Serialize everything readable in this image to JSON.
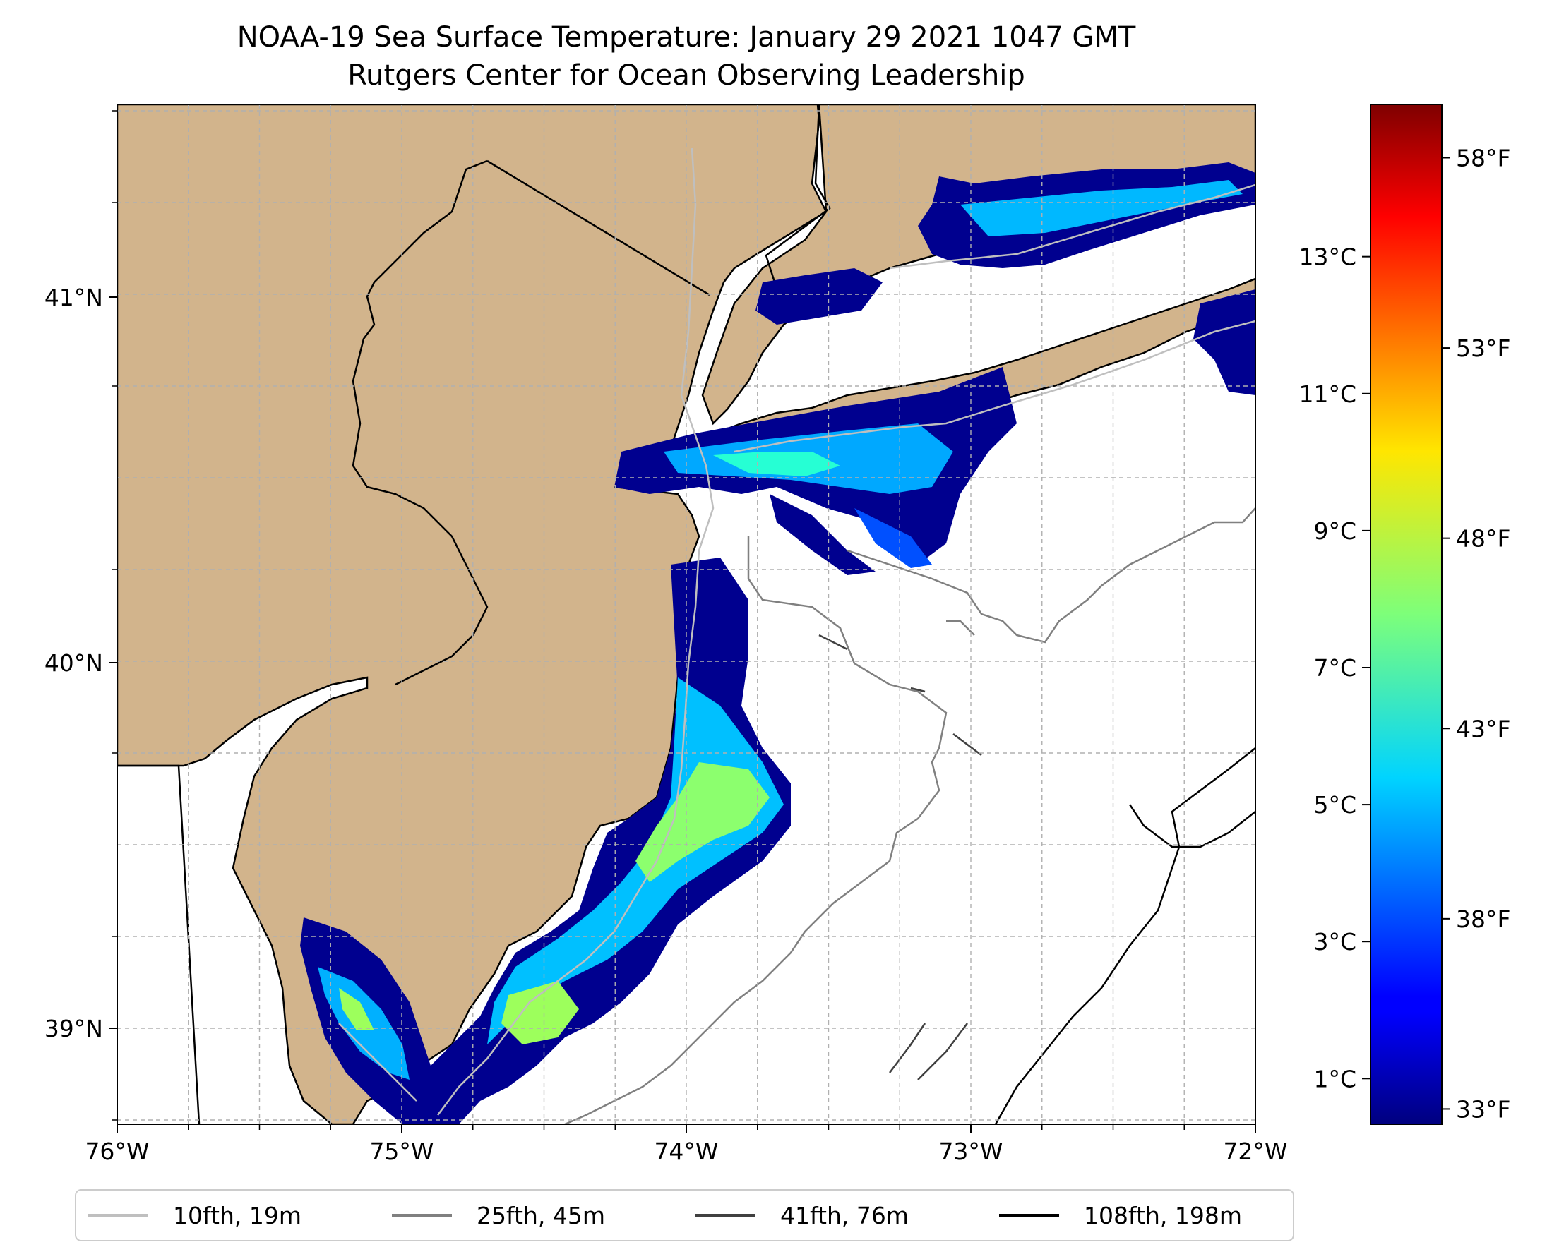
{
  "title": {
    "line1": "NOAA-19 Sea Surface Temperature: January 29 2021 1047 GMT",
    "line2": "Rutgers Center for Ocean Observing Leadership"
  },
  "map": {
    "extent": {
      "lon_min": -76,
      "lon_max": -72,
      "lat_min": 38.75,
      "lat_max": 41.52
    },
    "colors": {
      "land": "#d2b48c",
      "coast": "#000000",
      "grid": "#b0b0b0",
      "ocean": "#ffffff"
    },
    "lon_ticks": [
      {
        "value": -76,
        "label": "76°W"
      },
      {
        "value": -75,
        "label": "75°W"
      },
      {
        "value": -74,
        "label": "74°W"
      },
      {
        "value": -73,
        "label": "73°W"
      },
      {
        "value": -72,
        "label": "72°W"
      }
    ],
    "lat_ticks": [
      {
        "value": 41,
        "label": "41°N"
      },
      {
        "value": 40,
        "label": "40°N"
      },
      {
        "value": 39,
        "label": "39°N"
      }
    ]
  },
  "colorbar": {
    "cmap": "jet",
    "celsius_ticks": [
      {
        "value": 1,
        "label": "1°C"
      },
      {
        "value": 3,
        "label": "3°C"
      },
      {
        "value": 5,
        "label": "5°C"
      },
      {
        "value": 7,
        "label": "7°C"
      },
      {
        "value": 9,
        "label": "9°C"
      },
      {
        "value": 11,
        "label": "11°C"
      },
      {
        "value": 13,
        "label": "13°C"
      }
    ],
    "fahrenheit_ticks": [
      {
        "value": 33,
        "label": "33°F"
      },
      {
        "value": 38,
        "label": "38°F"
      },
      {
        "value": 43,
        "label": "43°F"
      },
      {
        "value": 48,
        "label": "48°F"
      },
      {
        "value": 53,
        "label": "53°F"
      },
      {
        "value": 58,
        "label": "58°F"
      }
    ],
    "range_f": [
      32.6,
      59.4
    ]
  },
  "legend": {
    "items": [
      {
        "label": "10fth, 19m",
        "color": "#bfbfbf"
      },
      {
        "label": "25fth, 45m",
        "color": "#808080"
      },
      {
        "label": "41fth, 76m",
        "color": "#404040"
      },
      {
        "label": "108fth, 198m",
        "color": "#000000"
      }
    ]
  }
}
